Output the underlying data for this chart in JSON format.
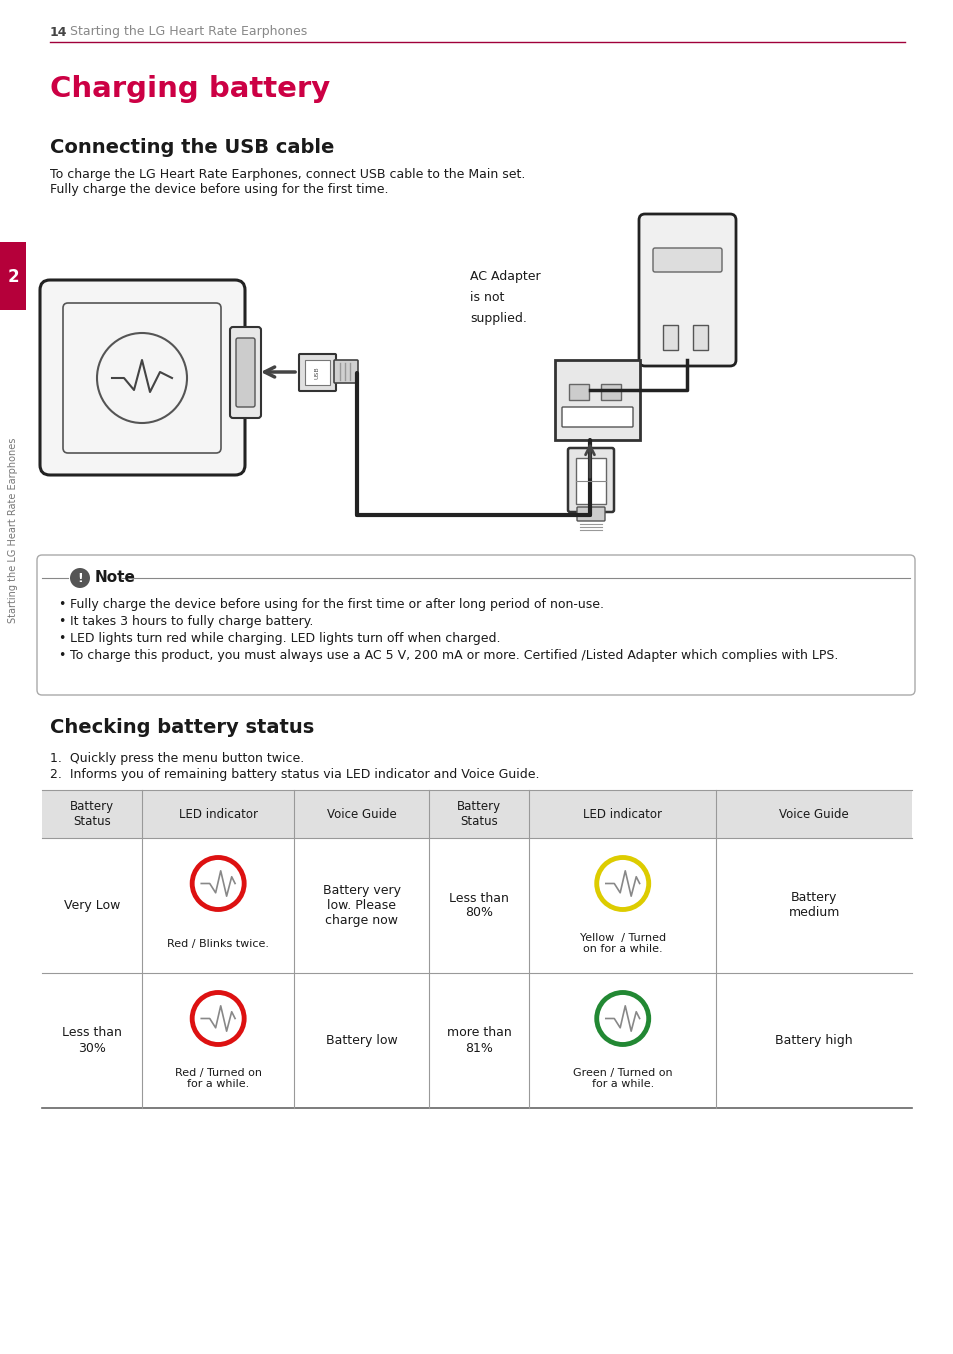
{
  "page_number": "14",
  "header_text": "Starting the LG Heart Rate Earphones",
  "header_color": "#888888",
  "header_line_color": "#a0003a",
  "side_bar_color": "#b5003a",
  "side_text": "Starting the LG Heart Rate Earphones",
  "side_number": "2",
  "main_title": "Charging battery",
  "main_title_color": "#cc0044",
  "section1_title": "Connecting the USB cable",
  "section1_text1": "To charge the LG Heart Rate Earphones, connect USB cable to the Main set.",
  "section1_text2": "Fully charge the device before using for the first time.",
  "ac_adapter_text": "AC Adapter\nis not\nsupplied.",
  "note_title": "Note",
  "note_bullet1": "Fully charge the device before using for the first time or after long period of non-use.",
  "note_bullet2": "It takes 3 hours to fully charge battery.",
  "note_bullet3": "LED lights turn red while charging. LED lights turn off when charged.",
  "note_bullet4": "To charge this product, you must always use a AC 5 V, 200 mA or more. Certified /Listed Adapter which complies with LPS.",
  "section2_title": "Checking battery status",
  "step1": "Quickly press the menu button twice.",
  "step2": "Informs you of remaining battery status via LED indicator and Voice Guide.",
  "table_headers": [
    "Battery\nStatus",
    "LED indicator",
    "Voice Guide",
    "Battery\nStatus",
    "LED indicator",
    "Voice Guide"
  ],
  "row1_col1": "Very Low",
  "row1_col2_label": "Red / Blinks twice.",
  "row1_col3": "Battery very\nlow. Please\ncharge now",
  "row1_col4": "Less than\n80%",
  "row1_col5_label": "Yellow  / Turned\non for a while.",
  "row1_col6": "Battery\nmedium",
  "row2_col1": "Less than\n30%",
  "row2_col2_label": "Red / Turned on\nfor a while.",
  "row2_col3": "Battery low",
  "row2_col4": "more than\n81%",
  "row2_col5_label": "Green / Turned on\nfor a while.",
  "row2_col6": "Battery high",
  "red_color": "#dd1111",
  "yellow_color": "#ddcc00",
  "green_color": "#228833",
  "bg_color": "#ffffff",
  "text_color": "#1a1a1a",
  "table_header_bg": "#e0e0e0",
  "table_line_color": "#aaaaaa"
}
